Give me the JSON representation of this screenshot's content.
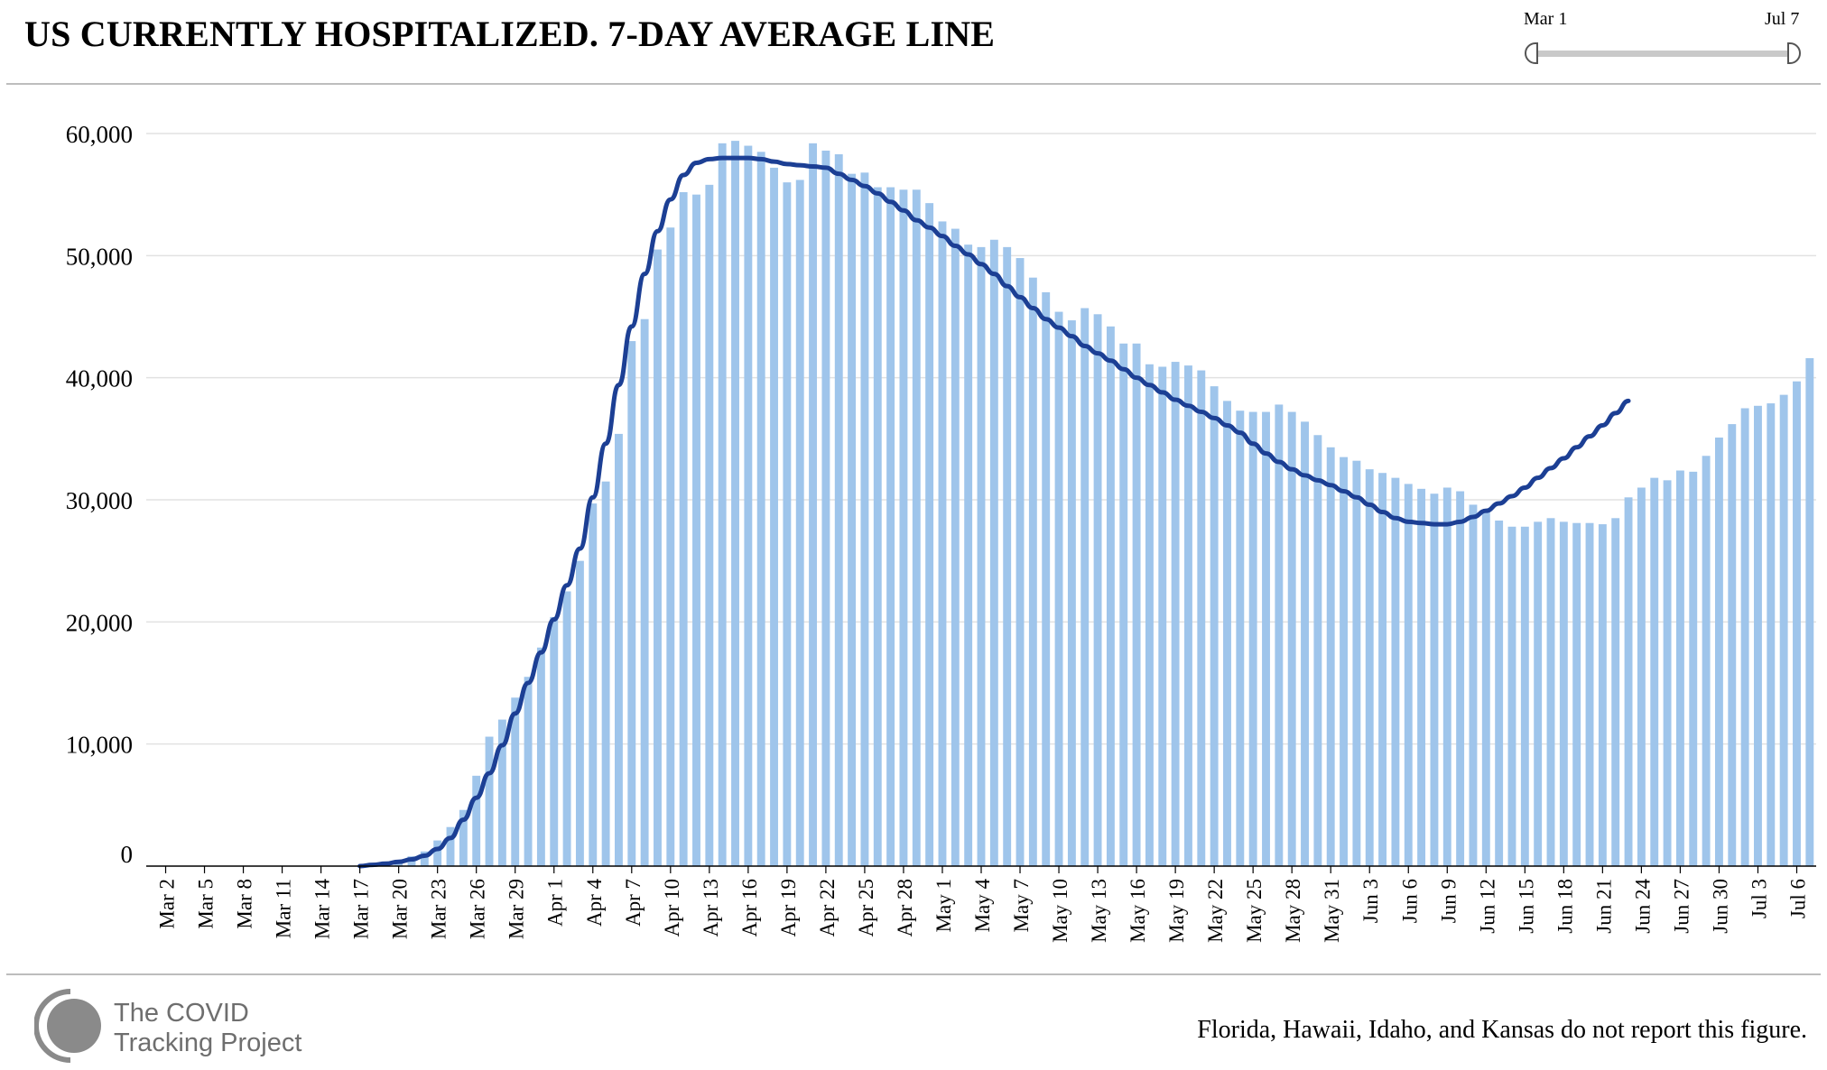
{
  "header": {
    "title": "US CURRENTLY HOSPITALIZED. 7-DAY AVERAGE LINE"
  },
  "slider": {
    "start_label": "Mar 1",
    "end_label": "Jul 7"
  },
  "footer": {
    "logo_line1": "The COVID",
    "logo_line2": "Tracking Project",
    "note": "Florida, Hawaii, Idaho, and Kansas do not report this figure."
  },
  "colors": {
    "bar": "#9fc5eb",
    "line": "#1c3f94",
    "grid": "#e2e2e2",
    "logo": "#8a8a8a"
  },
  "chart_data": {
    "type": "bar",
    "x_labels": [
      "Mar 2",
      "Mar 5",
      "Mar 8",
      "Mar 11",
      "Mar 14",
      "Mar 17",
      "Mar 20",
      "Mar 23",
      "Mar 26",
      "Mar 29",
      "Apr 1",
      "Apr 4",
      "Apr 7",
      "Apr 10",
      "Apr 13",
      "Apr 16",
      "Apr 19",
      "Apr 22",
      "Apr 25",
      "Apr 28",
      "May 1",
      "May 4",
      "May 7",
      "May 10",
      "May 13",
      "May 16",
      "May 19",
      "May 22",
      "May 25",
      "May 28",
      "May 31",
      "Jun 3",
      "Jun 6",
      "Jun 9",
      "Jun 12",
      "Jun 15",
      "Jun 18",
      "Jun 21",
      "Jun 24",
      "Jun 27",
      "Jun 30",
      "Jul 3",
      "Jul 6"
    ],
    "y_ticks": [
      "0",
      "10,000",
      "20,000",
      "30,000",
      "40,000",
      "50,000",
      "60,000"
    ],
    "ylim": [
      0,
      60000
    ],
    "grid": true,
    "series": [
      {
        "type": "bar",
        "x_start": "Mar 1",
        "values": [
          0,
          0,
          0,
          0,
          0,
          0,
          0,
          0,
          0,
          0,
          0,
          0,
          0,
          0,
          0,
          0,
          0,
          150,
          350,
          500,
          800,
          1200,
          2100,
          3200,
          4600,
          7400,
          10600,
          12000,
          13800,
          15500,
          17900,
          20400,
          22500,
          25000,
          29700,
          31500,
          35400,
          43000,
          44800,
          50500,
          52300,
          55200,
          55000,
          55800,
          59200,
          59400,
          59000,
          58500,
          57200,
          56000,
          56200,
          59200,
          58600,
          58300,
          56700,
          56800,
          55600,
          55600,
          55400,
          55400,
          54300,
          52800,
          52200,
          50900,
          50700,
          51300,
          50700,
          49800,
          48200,
          47000,
          45400,
          44700,
          45700,
          45200,
          44200,
          42800,
          42800,
          41100,
          40900,
          41300,
          41000,
          40600,
          39300,
          38100,
          37300,
          37200,
          37200,
          37800,
          37200,
          36400,
          35300,
          34300,
          33500,
          33200,
          32500,
          32200,
          31800,
          31300,
          30900,
          30500,
          31000,
          30700,
          29600,
          29100,
          28300,
          27800,
          27800,
          28200,
          28500,
          28200,
          28100,
          28100,
          28000,
          28500,
          30200,
          31000,
          31800,
          31600,
          32400,
          32300,
          33600,
          35100,
          36200,
          37500,
          37700,
          37900,
          38600,
          39700,
          41600
        ]
      },
      {
        "type": "line",
        "name": "7-day average",
        "x_start": "Mar 17",
        "values": [
          0,
          100,
          200,
          350,
          550,
          850,
          1400,
          2300,
          3800,
          5600,
          7600,
          9900,
          12500,
          15000,
          17500,
          20200,
          23000,
          26000,
          30200,
          34600,
          39400,
          44200,
          48500,
          52000,
          54600,
          56600,
          57600,
          57900,
          58000,
          58000,
          58000,
          57900,
          57700,
          57500,
          57400,
          57300,
          57200,
          56700,
          56200,
          55700,
          55100,
          54400,
          53700,
          52900,
          52300,
          51600,
          50800,
          50100,
          49300,
          48500,
          47500,
          46600,
          45700,
          44800,
          44100,
          43400,
          42600,
          42000,
          41400,
          40700,
          40000,
          39400,
          38800,
          38200,
          37700,
          37200,
          36700,
          36100,
          35500,
          34600,
          33800,
          33100,
          32500,
          32000,
          31600,
          31200,
          30700,
          30200,
          29600,
          29000,
          28500,
          28200,
          28100,
          28000,
          28000,
          28200,
          28600,
          29100,
          29700,
          30300,
          31000,
          31800,
          32600,
          33400,
          34300,
          35200,
          36100,
          37100,
          38100
        ]
      }
    ]
  }
}
